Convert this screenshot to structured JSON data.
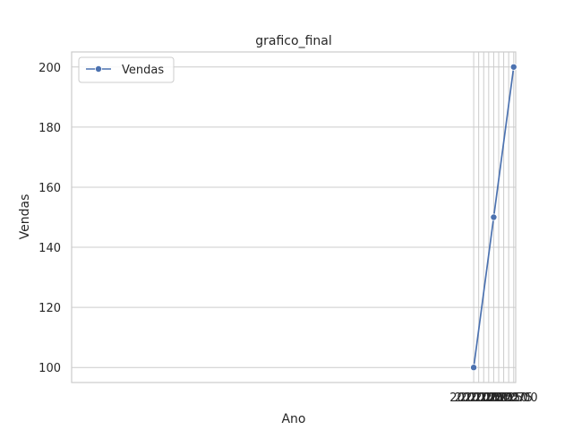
{
  "chart_data": {
    "type": "line",
    "title": "grafico_final",
    "xlabel": "Ano",
    "ylabel": "Vendas",
    "x": [
      2020,
      2021,
      2022
    ],
    "series": [
      {
        "name": "Vendas",
        "values": [
          100,
          150,
          200
        ],
        "color": "#4c72b0",
        "marker": "circle"
      }
    ],
    "xlim": [
      1999.9,
      2022.1
    ],
    "ylim": [
      95,
      205
    ],
    "xticks": [
      "2020.00",
      "2020.25",
      "2020.50",
      "2020.75",
      "2021.00",
      "2021.25",
      "2021.50",
      "2021.75",
      "2022.00"
    ],
    "yticks": [
      "100",
      "120",
      "140",
      "160",
      "180",
      "200"
    ],
    "grid": true,
    "legend_position": "top-left",
    "colors": {
      "grid": "#cccccc",
      "spine": "#cccccc",
      "text": "#262626"
    }
  }
}
